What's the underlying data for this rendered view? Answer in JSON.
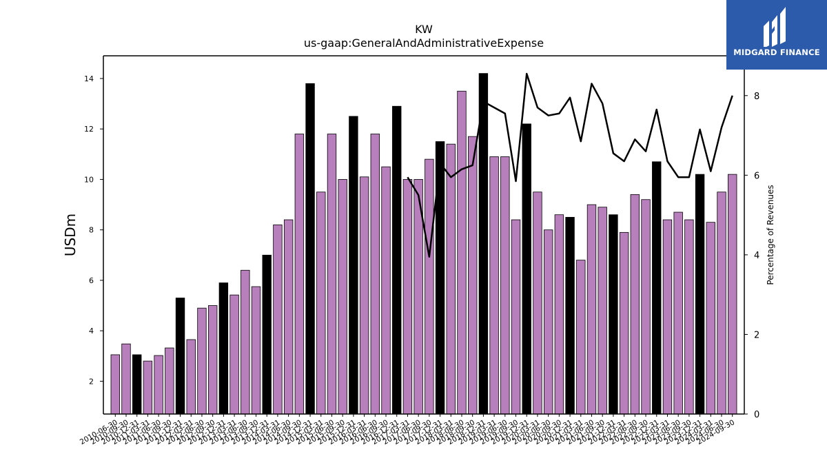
{
  "chart_data": {
    "type": "bar",
    "title": "KW",
    "subtitle": "us-gaap:GeneralAndAdministrativeExpense",
    "ylabel": "USDm",
    "ylabel_right": "Percentage of Revenues",
    "ylim": [
      0.7,
      14.9
    ],
    "ylim_right": [
      0,
      9
    ],
    "yticks": [
      2,
      4,
      6,
      8,
      10,
      12,
      14
    ],
    "yticks_right": [
      0,
      2,
      4,
      6,
      8
    ],
    "categories": [
      "2010-06-30",
      "2010-09-30",
      "2010-12-31",
      "2011-03-31",
      "2011-06-30",
      "2011-09-30",
      "2011-12-31",
      "2012-03-31",
      "2012-06-30",
      "2012-09-30",
      "2012-12-31",
      "2013-03-31",
      "2013-06-30",
      "2013-09-30",
      "2013-12-31",
      "2014-03-31",
      "2014-06-30",
      "2014-09-30",
      "2014-12-31",
      "2015-03-31",
      "2015-06-30",
      "2015-09-30",
      "2015-12-31",
      "2016-03-31",
      "2016-06-30",
      "2016-09-30",
      "2016-12-31",
      "2017-03-31",
      "2017-06-30",
      "2017-09-30",
      "2017-12-31",
      "2018-03-31",
      "2018-06-30",
      "2018-09-30",
      "2018-12-31",
      "2019-03-31",
      "2019-06-30",
      "2019-09-30",
      "2019-12-31",
      "2020-03-31",
      "2020-06-30",
      "2020-09-30",
      "2020-12-31",
      "2021-03-31",
      "2021-06-30",
      "2021-09-30",
      "2021-12-31",
      "2022-03-31",
      "2022-06-30",
      "2022-09-30",
      "2022-12-31",
      "2023-03-31",
      "2023-06-30",
      "2023-09-30",
      "2023-12-31",
      "2024-03-31",
      "2024-06-30",
      "2024-09-30"
    ],
    "values": [
      3.05,
      3.48,
      3.05,
      2.8,
      3.02,
      3.32,
      5.3,
      3.65,
      4.9,
      5.0,
      5.9,
      5.42,
      6.4,
      5.75,
      7.0,
      8.2,
      8.4,
      11.8,
      13.8,
      9.5,
      11.8,
      10.0,
      12.5,
      10.1,
      11.8,
      10.5,
      12.9,
      10.0,
      10.0,
      10.8,
      11.5,
      11.4,
      13.5,
      11.7,
      14.2,
      10.9,
      10.9,
      8.4,
      12.2,
      9.5,
      8.0,
      8.6,
      8.5,
      6.8,
      9.0,
      8.9,
      8.6,
      7.9,
      9.4,
      9.2,
      10.7,
      8.4,
      8.7,
      8.4,
      10.2,
      8.3,
      9.5,
      10.2
    ],
    "highlight": [
      false,
      false,
      true,
      false,
      false,
      false,
      true,
      false,
      false,
      false,
      true,
      false,
      false,
      false,
      true,
      false,
      false,
      false,
      true,
      false,
      false,
      false,
      true,
      false,
      false,
      false,
      true,
      false,
      false,
      false,
      true,
      false,
      false,
      false,
      true,
      false,
      false,
      false,
      true,
      false,
      false,
      false,
      true,
      false,
      false,
      false,
      true,
      false,
      false,
      false,
      true,
      false,
      false,
      false,
      true,
      false,
      false,
      false
    ],
    "line_start_index": 27,
    "line_values": [
      5.95,
      5.5,
      3.95,
      6.3,
      5.95,
      6.15,
      6.25,
      7.85,
      7.7,
      7.55,
      5.85,
      8.55,
      7.7,
      7.5,
      7.55,
      7.95,
      6.85,
      8.3,
      7.8,
      6.55,
      6.35,
      6.9,
      6.6,
      7.65,
      6.35,
      5.95,
      5.95,
      7.15,
      6.1,
      7.2,
      8.0
    ],
    "colors": {
      "bar": "#b87fbd",
      "bar_highlight": "#000000",
      "line": "#000000"
    }
  },
  "branding": {
    "text": "MIDGARD FINANCE",
    "color": "#2d5bab"
  }
}
